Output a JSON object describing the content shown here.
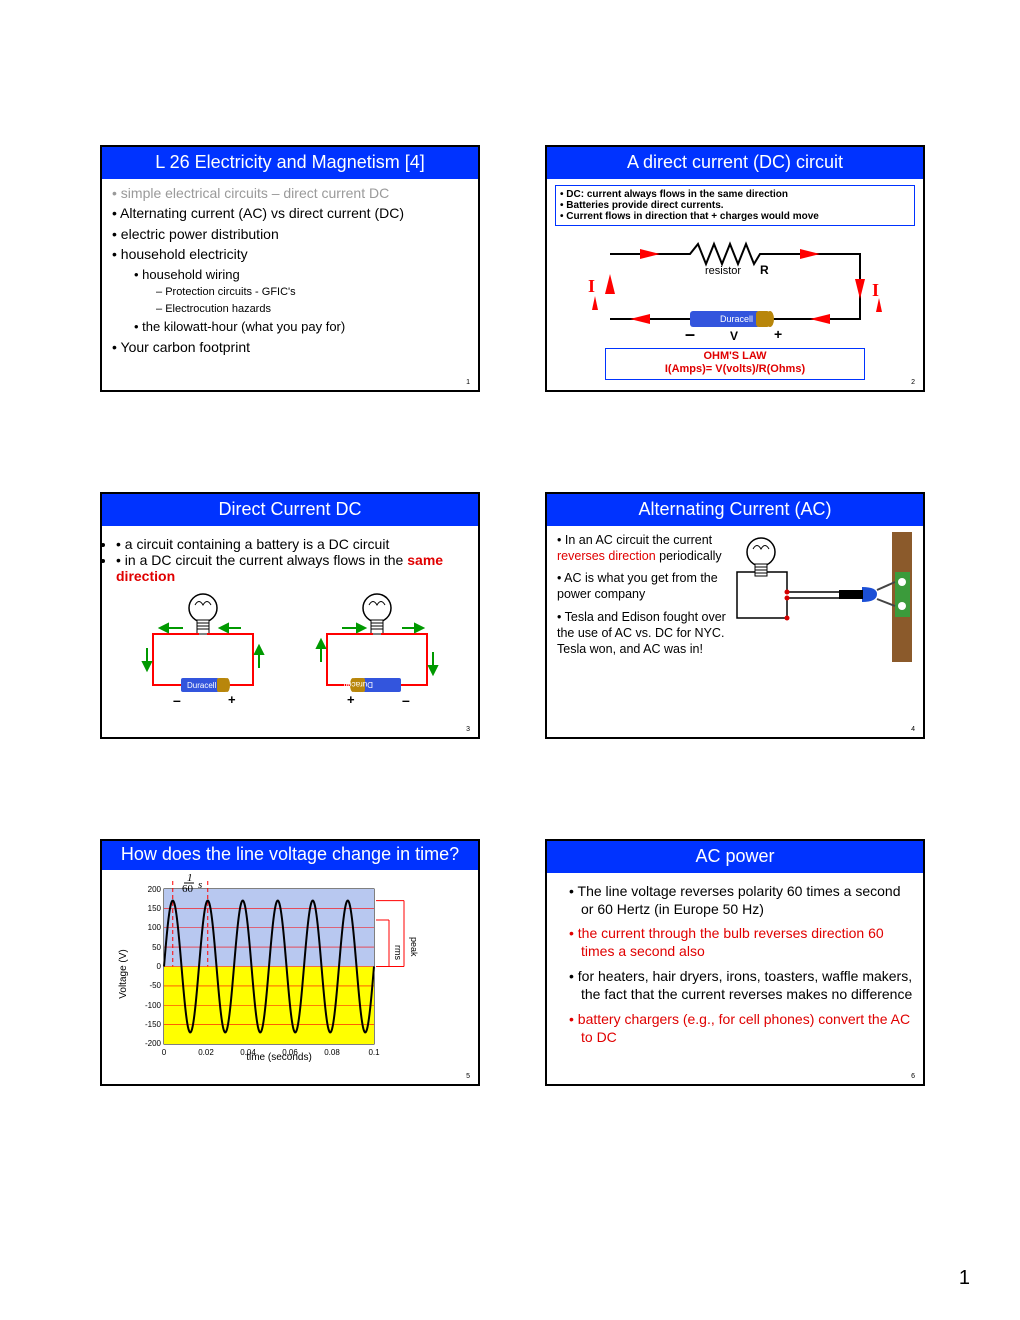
{
  "page_number_footer": "1",
  "slide1": {
    "title": "L 26 Electricity and Magnetism [4]",
    "items": {
      "i1": "simple electrical circuits – direct current DC",
      "i2": "Alternating current (AC) vs direct current (DC)",
      "i3": "electric power distribution",
      "i4": "household electricity",
      "i4a": "household wiring",
      "i4a1": "Protection circuits - GFIC's",
      "i4a2": "Electrocution hazards",
      "i4b": "the kilowatt-hour (what you pay for)",
      "i5": "Your carbon footprint"
    },
    "num": "1"
  },
  "slide2": {
    "title": "A direct current (DC) circuit",
    "facts": {
      "f1": "DC: current always flows in the same direction",
      "f2": "Batteries provide direct currents.",
      "f3": "Current flows in direction that + charges would move"
    },
    "labels": {
      "resistor": "resistor",
      "R": "R",
      "V": "V",
      "I_left": "I",
      "I_right": "I",
      "plus": "+",
      "minus": "–",
      "batt": "Duracell"
    },
    "ohm": {
      "line1": "OHM'S LAW",
      "line2": "I(Amps)= V(volts)/R(Ohms)"
    },
    "colors": {
      "wire": "#000000",
      "arrow": "#ff0000",
      "blue": "#0033ff",
      "batt_body": "#3355dd",
      "batt_cap": "#b8860b"
    },
    "num": "2"
  },
  "slide3": {
    "title": "Direct Current DC",
    "b1": "a circuit containing a battery is a DC circuit",
    "b2a": "in a DC circuit the current always flows in the ",
    "b2b": "same direction",
    "labels": {
      "batt": "Duracell",
      "plus": "+",
      "minus": "–"
    },
    "colors": {
      "wire": "#ff0000",
      "arrow": "#009900",
      "batt_body": "#3355dd",
      "batt_cap": "#b8860b"
    },
    "num": "3"
  },
  "slide4": {
    "title": "Alternating Current (AC)",
    "b1a": "In an AC circuit the current ",
    "b1b": "reverses direction",
    "b1c": " periodically",
    "b2": "AC is what you get from the power company",
    "b3": "Tesla and Edison fought over the use of AC vs. DC for NYC.  Tesla won, and AC was in!",
    "colors": {
      "wire": "#000",
      "plug": "#1b4fd6",
      "wall": "#8b5a2b",
      "outlet": "#3b9b3b",
      "dot": "#d60000"
    },
    "num": "4"
  },
  "slide5": {
    "title": "How does the line voltage change in time?",
    "chart": {
      "type": "line",
      "xlabel": "time (seconds)",
      "ylabel": "Voltage (V)",
      "xlim": [
        0,
        0.1
      ],
      "ylim": [
        -200,
        200
      ],
      "xticks": [
        "0",
        "0.02",
        "0.04",
        "0.06",
        "0.08",
        "0.1"
      ],
      "yticks": [
        "-200",
        "-150",
        "-100",
        "-50",
        "0",
        "50",
        "100",
        "150",
        "200"
      ],
      "amplitude": 170,
      "frequency_hz": 60,
      "upper_fill": "#b8c8f0",
      "lower_fill": "#ffff00",
      "ytick_lines_color": "#ff0000",
      "curve_color": "#000000",
      "dashed_color": "#ff0000",
      "period_label": "s",
      "period_frac_top": "1",
      "period_frac_bot": "60",
      "peak_label": "peak",
      "rms_label": "rms"
    },
    "num": "5"
  },
  "slide6": {
    "title": "AC power",
    "b1": "The line voltage reverses polarity 60 times a second or 60 Hertz (in Europe 50 Hz)",
    "b2": "the current through the bulb reverses direction 60 times a second also",
    "b3": "for heaters, hair dryers, irons, toasters, waffle makers, the fact that the current reverses makes no difference",
    "b4": "battery chargers (e.g., for cell phones) convert the AC to DC",
    "num": "6"
  }
}
